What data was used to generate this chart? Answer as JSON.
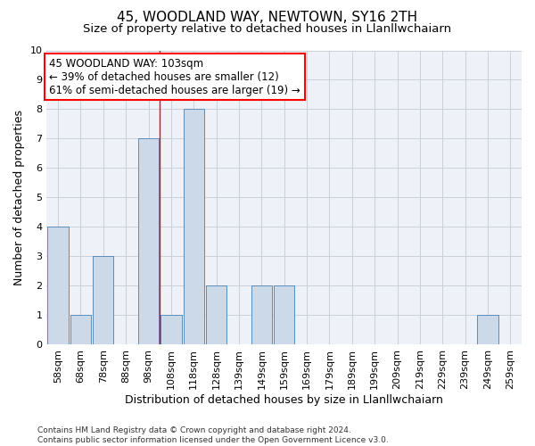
{
  "title": "45, WOODLAND WAY, NEWTOWN, SY16 2TH",
  "subtitle": "Size of property relative to detached houses in Llanllwchaiarn",
  "xlabel": "Distribution of detached houses by size in Llanllwchaiarn",
  "ylabel": "Number of detached properties",
  "footer_line1": "Contains HM Land Registry data © Crown copyright and database right 2024.",
  "footer_line2": "Contains public sector information licensed under the Open Government Licence v3.0.",
  "bin_labels": [
    "58sqm",
    "68sqm",
    "78sqm",
    "88sqm",
    "98sqm",
    "108sqm",
    "118sqm",
    "128sqm",
    "139sqm",
    "149sqm",
    "159sqm",
    "169sqm",
    "179sqm",
    "189sqm",
    "199sqm",
    "209sqm",
    "219sqm",
    "229sqm",
    "239sqm",
    "249sqm",
    "259sqm"
  ],
  "bar_values": [
    4,
    1,
    3,
    0,
    7,
    1,
    8,
    2,
    0,
    2,
    2,
    0,
    0,
    0,
    0,
    0,
    0,
    0,
    0,
    1,
    0
  ],
  "bar_color": "#ccd9e8",
  "bar_edge_color": "#5b8db8",
  "annotation_line1": "45 WOODLAND WAY: 103sqm",
  "annotation_line2": "← 39% of detached houses are smaller (12)",
  "annotation_line3": "61% of semi-detached houses are larger (19) →",
  "annotation_box_color": "white",
  "annotation_box_edge_color": "red",
  "vertical_line_x": 4.5,
  "ylim": [
    0,
    10
  ],
  "yticks": [
    0,
    1,
    2,
    3,
    4,
    5,
    6,
    7,
    8,
    9,
    10
  ],
  "grid_color": "#c8d0dc",
  "bg_color": "#eef2f8",
  "title_fontsize": 11,
  "subtitle_fontsize": 9.5,
  "label_fontsize": 9,
  "tick_fontsize": 8,
  "annotation_fontsize": 8.5,
  "footer_fontsize": 6.5
}
